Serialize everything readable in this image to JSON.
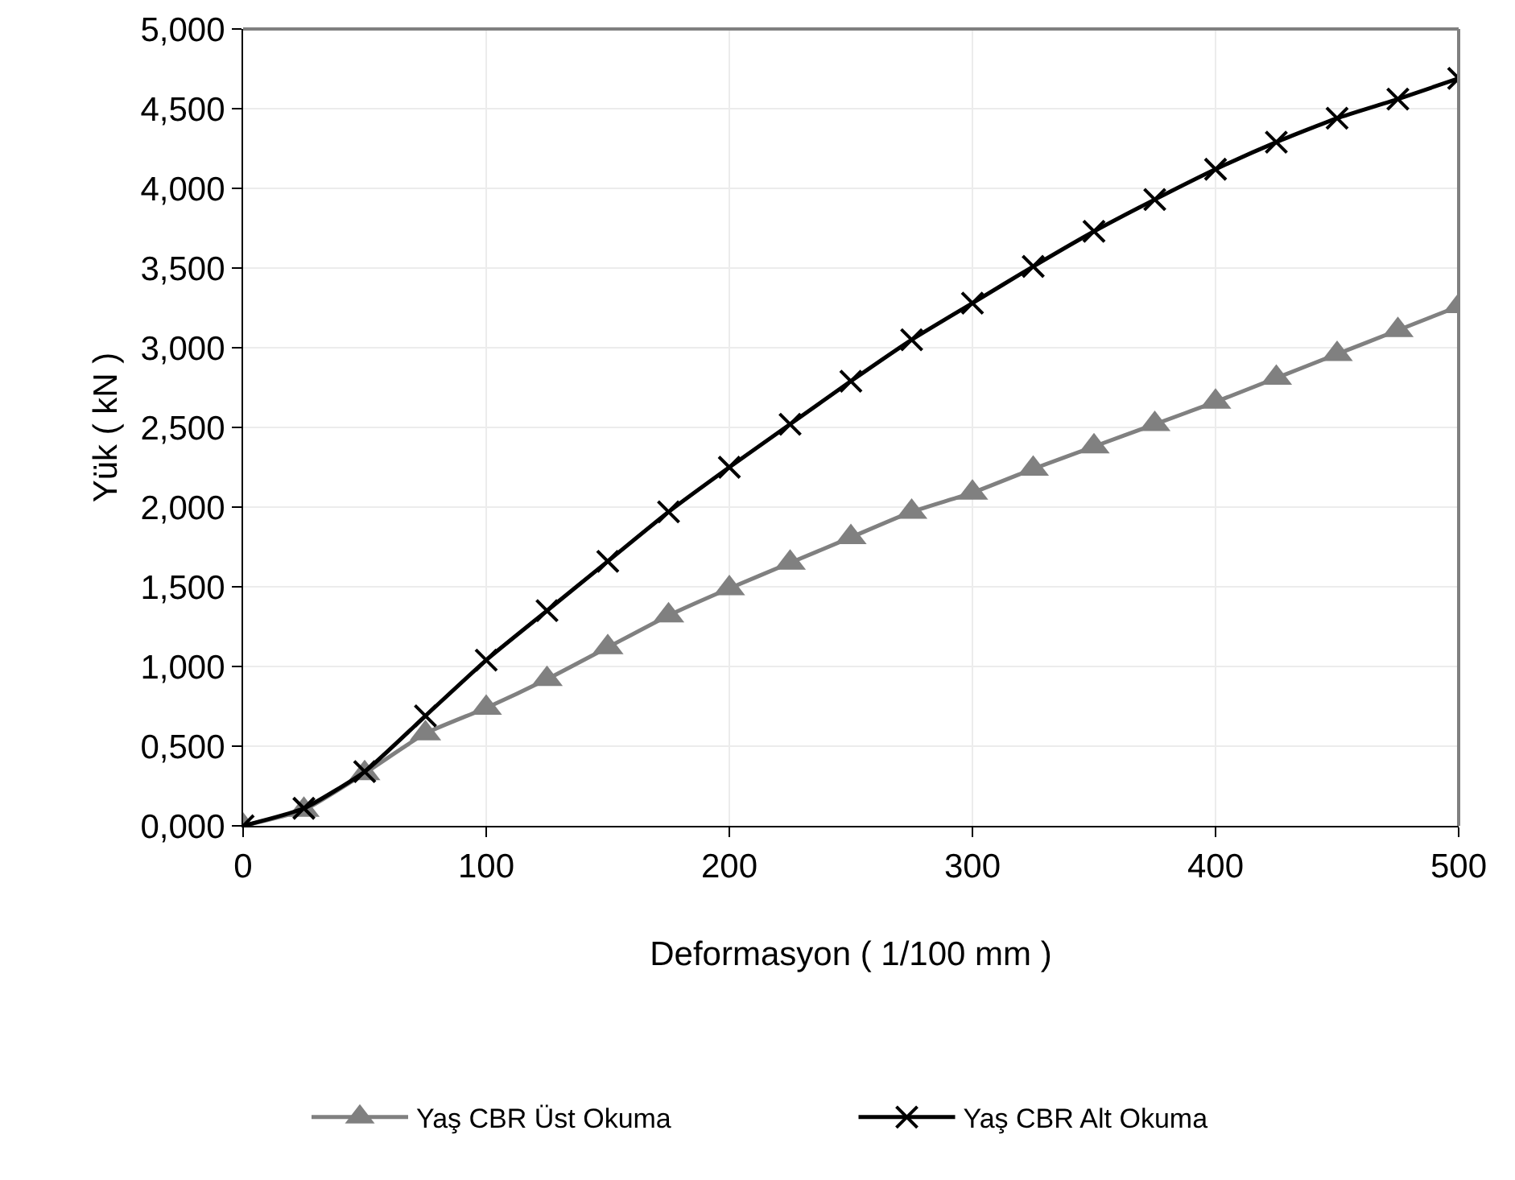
{
  "chart_data": {
    "type": "line",
    "xlabel": "Deformasyon ( 1/100 mm )",
    "ylabel": "Yük ( kN )",
    "x": [
      0,
      25,
      50,
      75,
      100,
      125,
      150,
      175,
      200,
      225,
      250,
      275,
      300,
      325,
      350,
      375,
      400,
      425,
      450,
      475,
      500
    ],
    "series": [
      {
        "name": "Yaş CBR Üst Okuma",
        "color": "#808080",
        "marker": "triangle",
        "values": [
          0,
          0.1,
          0.33,
          0.58,
          0.74,
          0.92,
          1.12,
          1.32,
          1.49,
          1.65,
          1.81,
          1.97,
          2.09,
          2.24,
          2.38,
          2.52,
          2.66,
          2.81,
          2.96,
          3.11,
          3.26
        ]
      },
      {
        "name": "Yaş CBR Alt Okuma",
        "color": "#000000",
        "marker": "cross",
        "values": [
          0,
          0.11,
          0.34,
          0.69,
          1.04,
          1.35,
          1.66,
          1.97,
          2.25,
          2.52,
          2.79,
          3.05,
          3.28,
          3.51,
          3.73,
          3.93,
          4.12,
          4.29,
          4.44,
          4.56,
          4.69
        ]
      }
    ],
    "xlim": [
      0,
      500
    ],
    "xticks": [
      0,
      100,
      200,
      300,
      400,
      500
    ],
    "ylim": [
      0,
      5
    ],
    "yticks": [
      {
        "value": 0,
        "label": "0,000"
      },
      {
        "value": 0.5,
        "label": "0,500"
      },
      {
        "value": 1,
        "label": "1,000"
      },
      {
        "value": 1.5,
        "label": "1,500"
      },
      {
        "value": 2,
        "label": "2,000"
      },
      {
        "value": 2.5,
        "label": "2,500"
      },
      {
        "value": 3,
        "label": "3,000"
      },
      {
        "value": 3.5,
        "label": "3,500"
      },
      {
        "value": 4,
        "label": "4,000"
      },
      {
        "value": 4.5,
        "label": "4,500"
      },
      {
        "value": 5,
        "label": "5,000"
      }
    ],
    "grid": true,
    "legend": "bottom",
    "line_style": "solid"
  }
}
